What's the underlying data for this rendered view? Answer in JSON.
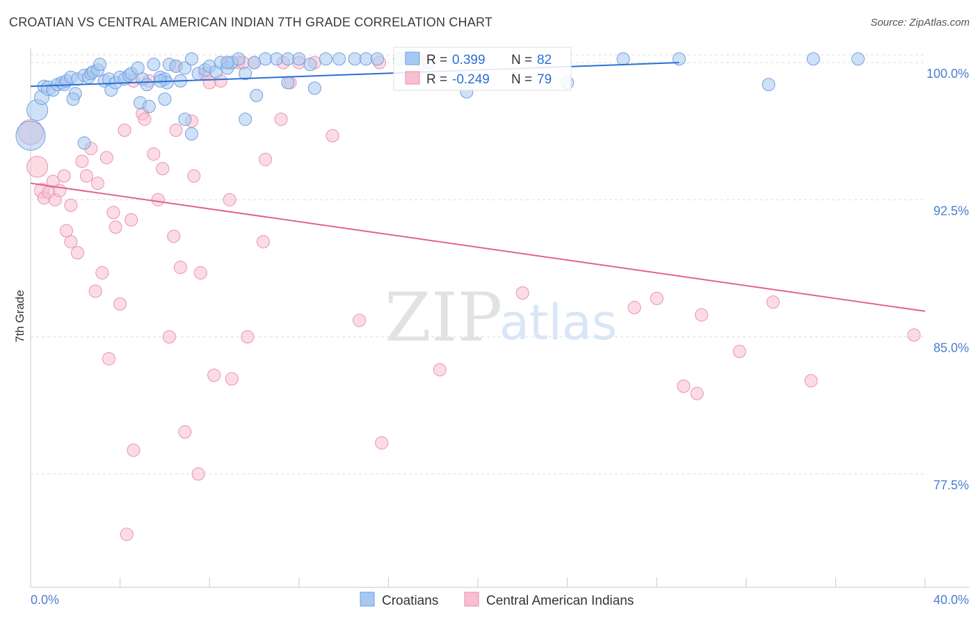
{
  "title": "CROATIAN VS CENTRAL AMERICAN INDIAN 7TH GRADE CORRELATION CHART",
  "source": "Source: ZipAtlas.com",
  "watermark": {
    "zip": "ZIP",
    "atlas": "atlas"
  },
  "colors": {
    "blue_fill": "#a7c8f0",
    "blue_stroke": "#6f9fe0",
    "blue_line": "#2a6fd1",
    "pink_fill": "#f7bfd0",
    "pink_stroke": "#ea90ae",
    "pink_line": "#e2628e",
    "tick_text": "#4a7fd0",
    "grid": "#dddddd"
  },
  "legend_box": {
    "rows": [
      {
        "r_label": "R =",
        "r_value": "0.399",
        "n_label": "N =",
        "n_value": "82",
        "series": "blue"
      },
      {
        "r_label": "R =",
        "r_value": "-0.249",
        "n_label": "N =",
        "n_value": "79",
        "series": "pink"
      }
    ]
  },
  "chart_data": {
    "type": "scatter",
    "title": "CROATIAN VS CENTRAL AMERICAN INDIAN 7TH GRADE CORRELATION CHART",
    "xlabel": "",
    "ylabel": "7th Grade",
    "xlim": [
      0,
      40
    ],
    "ylim": [
      71.3,
      100.8
    ],
    "x_tick_labels": [
      {
        "value": 0,
        "label": "0.0%"
      },
      {
        "value": 40,
        "label": "40.0%"
      }
    ],
    "x_minor_ticks": [
      0,
      4,
      8,
      12,
      16,
      20,
      24,
      28,
      32,
      36,
      40
    ],
    "y_ticks": [
      {
        "value": 100,
        "label": "100.0%"
      },
      {
        "value": 92.5,
        "label": "92.5%"
      },
      {
        "value": 85,
        "label": "85.0%"
      },
      {
        "value": 77.5,
        "label": "77.5%"
      }
    ],
    "grid": true,
    "legend_position": "bottom-center",
    "series": [
      {
        "name": "Croatians",
        "color": "blue",
        "r": 0.399,
        "n": 82,
        "trend": {
          "x": [
            0,
            29
          ],
          "y": [
            98.7,
            100.0
          ]
        },
        "points": [
          [
            0.0,
            96.0,
            28
          ],
          [
            0.3,
            97.4,
            20
          ],
          [
            0.5,
            98.1,
            14
          ],
          [
            0.6,
            98.7,
            12
          ],
          [
            0.8,
            98.6,
            14
          ],
          [
            1.0,
            98.5,
            12
          ],
          [
            1.2,
            98.8,
            12
          ],
          [
            1.4,
            98.9,
            12
          ],
          [
            1.5,
            98.8,
            12
          ],
          [
            1.6,
            99.0,
            12
          ],
          [
            1.8,
            99.2,
            12
          ],
          [
            2.0,
            98.3,
            12
          ],
          [
            2.1,
            99.1,
            12
          ],
          [
            2.4,
            99.3,
            12
          ],
          [
            2.6,
            99.2,
            12
          ],
          [
            2.7,
            99.4,
            12
          ],
          [
            2.8,
            99.5,
            12
          ],
          [
            3.0,
            99.6,
            12
          ],
          [
            3.1,
            99.9,
            12
          ],
          [
            3.3,
            99.0,
            12
          ],
          [
            3.5,
            99.1,
            12
          ],
          [
            3.6,
            98.5,
            12
          ],
          [
            3.8,
            98.9,
            12
          ],
          [
            4.0,
            99.2,
            12
          ],
          [
            4.2,
            99.1,
            12
          ],
          [
            4.4,
            99.3,
            12
          ],
          [
            4.5,
            99.4,
            12
          ],
          [
            4.8,
            99.7,
            12
          ],
          [
            5.0,
            99.1,
            12
          ],
          [
            5.2,
            98.8,
            12
          ],
          [
            5.5,
            99.9,
            12
          ],
          [
            5.8,
            99.2,
            12
          ],
          [
            6.0,
            99.1,
            12
          ],
          [
            6.2,
            99.9,
            12
          ],
          [
            6.5,
            99.8,
            12
          ],
          [
            6.7,
            99.0,
            12
          ],
          [
            6.9,
            99.7,
            12
          ],
          [
            7.2,
            100.2,
            12
          ],
          [
            7.5,
            99.4,
            12
          ],
          [
            7.8,
            99.6,
            12
          ],
          [
            8.0,
            99.8,
            12
          ],
          [
            8.3,
            99.5,
            12
          ],
          [
            8.5,
            100.0,
            12
          ],
          [
            8.8,
            99.7,
            12
          ],
          [
            9.0,
            100.0,
            12
          ],
          [
            9.3,
            100.2,
            12
          ],
          [
            9.6,
            99.4,
            12
          ],
          [
            10.0,
            100.0,
            12
          ],
          [
            10.5,
            100.2,
            12
          ],
          [
            11.0,
            100.2,
            12
          ],
          [
            11.5,
            100.2,
            12
          ],
          [
            12.0,
            100.2,
            12
          ],
          [
            12.5,
            99.9,
            12
          ],
          [
            13.2,
            100.2,
            12
          ],
          [
            13.8,
            100.2,
            12
          ],
          [
            14.5,
            100.2,
            12
          ],
          [
            15.0,
            100.2,
            12
          ],
          [
            15.5,
            100.2,
            12
          ],
          [
            16.5,
            100.2,
            12
          ],
          [
            17.0,
            100.2,
            12
          ],
          [
            17.8,
            100.0,
            12
          ],
          [
            19.5,
            98.4,
            12
          ],
          [
            24.0,
            98.9,
            12
          ],
          [
            26.5,
            100.2,
            12
          ],
          [
            29.0,
            100.2,
            12
          ],
          [
            33.0,
            98.8,
            12
          ],
          [
            35.0,
            100.2,
            12
          ],
          [
            37.0,
            100.2,
            12
          ],
          [
            1.9,
            98.0,
            12
          ],
          [
            2.4,
            95.6,
            12
          ],
          [
            4.9,
            97.8,
            12
          ],
          [
            5.3,
            97.6,
            12
          ],
          [
            6.0,
            98.0,
            12
          ],
          [
            6.9,
            96.9,
            12
          ],
          [
            7.2,
            96.1,
            12
          ],
          [
            9.6,
            96.9,
            12
          ],
          [
            10.1,
            98.2,
            12
          ],
          [
            11.5,
            98.9,
            12
          ],
          [
            12.7,
            98.6,
            12
          ],
          [
            6.1,
            98.9,
            12
          ],
          [
            5.8,
            99.0,
            12
          ],
          [
            8.8,
            100.0,
            12
          ]
        ]
      },
      {
        "name": "Central American Indians",
        "color": "pink",
        "r": -0.249,
        "n": 79,
        "trend": {
          "x": [
            0,
            40
          ],
          "y": [
            93.4,
            86.4
          ]
        },
        "points": [
          [
            0.0,
            96.2,
            24
          ],
          [
            0.3,
            94.3,
            20
          ],
          [
            0.5,
            93.0,
            14
          ],
          [
            0.6,
            92.6,
            12
          ],
          [
            0.8,
            92.9,
            12
          ],
          [
            1.0,
            93.5,
            12
          ],
          [
            1.1,
            92.5,
            12
          ],
          [
            1.3,
            93.0,
            12
          ],
          [
            1.5,
            93.8,
            12
          ],
          [
            1.6,
            90.8,
            12
          ],
          [
            1.8,
            90.2,
            12
          ],
          [
            1.8,
            92.2,
            12
          ],
          [
            2.1,
            89.6,
            12
          ],
          [
            2.3,
            94.6,
            12
          ],
          [
            2.5,
            93.8,
            12
          ],
          [
            2.7,
            95.3,
            12
          ],
          [
            2.9,
            87.5,
            12
          ],
          [
            3.0,
            93.4,
            12
          ],
          [
            3.2,
            88.5,
            12
          ],
          [
            3.4,
            94.8,
            12
          ],
          [
            3.5,
            83.8,
            12
          ],
          [
            3.7,
            91.8,
            12
          ],
          [
            3.8,
            91.0,
            12
          ],
          [
            4.0,
            86.8,
            12
          ],
          [
            4.2,
            96.3,
            12
          ],
          [
            4.3,
            74.2,
            12
          ],
          [
            4.5,
            91.4,
            12
          ],
          [
            4.6,
            78.8,
            12
          ],
          [
            5.0,
            97.2,
            12
          ],
          [
            5.1,
            96.9,
            12
          ],
          [
            5.3,
            99.0,
            12
          ],
          [
            5.5,
            95.0,
            12
          ],
          [
            5.7,
            92.5,
            12
          ],
          [
            5.9,
            94.2,
            12
          ],
          [
            6.2,
            85.0,
            12
          ],
          [
            6.4,
            90.5,
            12
          ],
          [
            6.5,
            96.3,
            12
          ],
          [
            6.7,
            88.8,
            12
          ],
          [
            6.9,
            79.8,
            12
          ],
          [
            7.2,
            96.8,
            12
          ],
          [
            7.3,
            93.8,
            12
          ],
          [
            7.5,
            77.5,
            12
          ],
          [
            7.6,
            88.5,
            12
          ],
          [
            7.8,
            99.4,
            12
          ],
          [
            8.0,
            98.9,
            12
          ],
          [
            8.2,
            82.9,
            12
          ],
          [
            8.5,
            99.0,
            12
          ],
          [
            8.8,
            100.0,
            12
          ],
          [
            9.0,
            82.7,
            12
          ],
          [
            9.3,
            100.0,
            12
          ],
          [
            9.5,
            100.0,
            12
          ],
          [
            9.7,
            85.0,
            12
          ],
          [
            10.0,
            100.0,
            12
          ],
          [
            10.4,
            90.2,
            12
          ],
          [
            10.5,
            94.7,
            12
          ],
          [
            11.2,
            96.9,
            12
          ],
          [
            11.3,
            100.0,
            12
          ],
          [
            11.6,
            98.9,
            12
          ],
          [
            12.0,
            100.0,
            12
          ],
          [
            12.7,
            100.0,
            12
          ],
          [
            13.5,
            96.0,
            12
          ],
          [
            14.7,
            85.9,
            12
          ],
          [
            15.6,
            100.0,
            12
          ],
          [
            15.7,
            79.2,
            12
          ],
          [
            17.5,
            100.0,
            12
          ],
          [
            18.3,
            83.2,
            12
          ],
          [
            22.0,
            87.4,
            12
          ],
          [
            27.0,
            86.6,
            12
          ],
          [
            28.0,
            87.1,
            12
          ],
          [
            29.2,
            82.3,
            12
          ],
          [
            29.8,
            81.9,
            12
          ],
          [
            30.0,
            86.2,
            12
          ],
          [
            31.7,
            84.2,
            12
          ],
          [
            33.2,
            86.9,
            12
          ],
          [
            34.9,
            82.6,
            12
          ],
          [
            39.5,
            85.1,
            12
          ],
          [
            8.9,
            92.5,
            12
          ],
          [
            6.5,
            99.8,
            12
          ],
          [
            4.6,
            99.0,
            12
          ]
        ]
      }
    ]
  }
}
